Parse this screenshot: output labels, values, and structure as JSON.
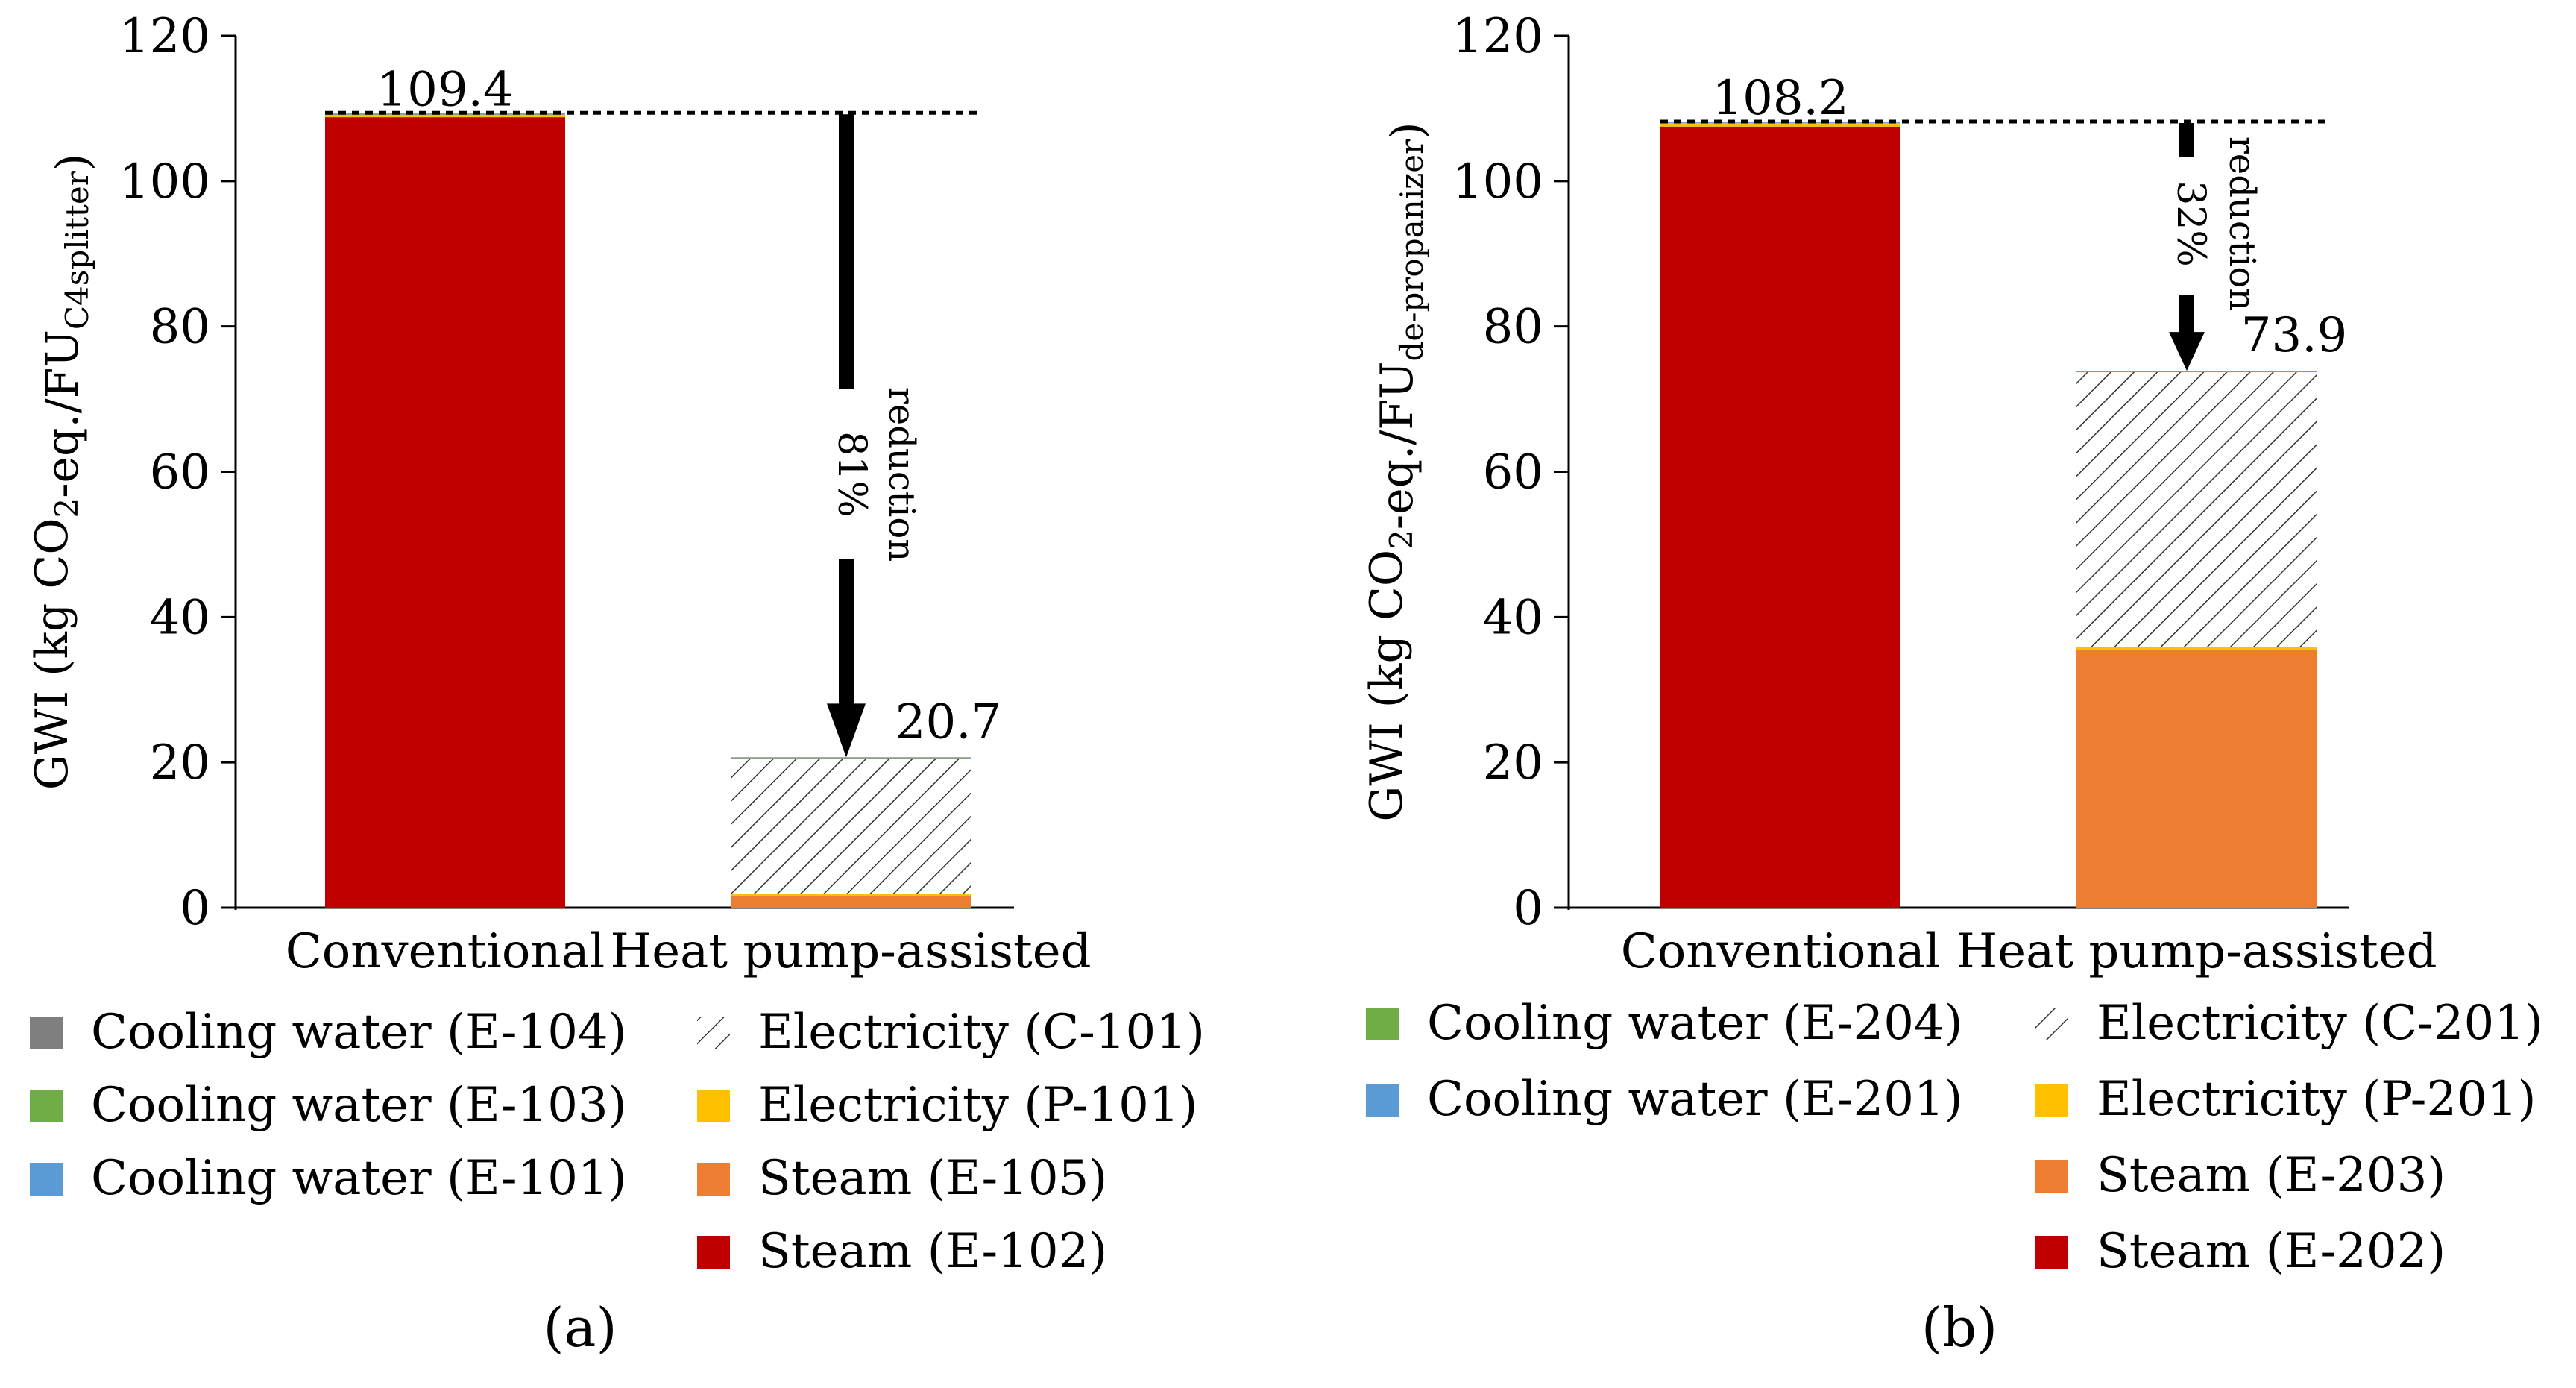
{
  "colors": {
    "steam_main": "#C00000",
    "steam_aux": "#ED7D31",
    "electricity_pump": "#FFC000",
    "cooling_green": "#70AD47",
    "cooling_blue": "#5B9BD5",
    "cooling_gray": "#7F7F7F",
    "axis": "#000000"
  },
  "chart_data": [
    {
      "type": "bar",
      "stacked": true,
      "panel_label": "(a)",
      "ylabel_main": "GWI (kg CO",
      "ylabel_sub1": "2",
      "ylabel_mid": "-eq./FU",
      "ylabel_sub2": "C4splitter",
      "ylabel_end": ")",
      "ylim": [
        0,
        120
      ],
      "yticks": [
        0,
        20,
        40,
        60,
        80,
        100,
        120
      ],
      "categories": [
        "Conventional",
        "Heat pump-assisted"
      ],
      "totals": [
        109.4,
        20.7
      ],
      "total_labels": [
        "109.4",
        "20.7"
      ],
      "baseline": 109.4,
      "reduction_pct": "81%",
      "reduction_word": "reduction",
      "series": [
        {
          "name": "Steam (E-102)",
          "color": "steam_main",
          "hatch": false,
          "values": [
            108.8,
            0
          ]
        },
        {
          "name": "Steam (E-105)",
          "color": "steam_aux",
          "hatch": false,
          "values": [
            0,
            1.6
          ]
        },
        {
          "name": "Electricity (P-101)",
          "color": "electricity_pump",
          "hatch": false,
          "values": [
            0.4,
            0.3
          ]
        },
        {
          "name": "Electricity (C-101)",
          "color": "",
          "hatch": true,
          "values": [
            0,
            18.6
          ]
        },
        {
          "name": "Cooling water (E-101)",
          "color": "cooling_blue",
          "hatch": false,
          "values": [
            0.05,
            0.05
          ]
        },
        {
          "name": "Cooling water (E-103)",
          "color": "cooling_green",
          "hatch": false,
          "values": [
            0.1,
            0.1
          ]
        },
        {
          "name": "Cooling water (E-104)",
          "color": "cooling_gray",
          "hatch": false,
          "values": [
            0.05,
            0.05
          ]
        }
      ],
      "legend_left": [
        "Cooling water (E-104)",
        "Cooling water (E-103)",
        "Cooling water (E-101)"
      ],
      "legend_right": [
        "Electricity (C-101)",
        "Electricity (P-101)",
        "Steam (E-105)",
        "Steam (E-102)"
      ]
    },
    {
      "type": "bar",
      "stacked": true,
      "panel_label": "(b)",
      "ylabel_main": "GWI (kg CO",
      "ylabel_sub1": "2",
      "ylabel_mid": "-eq./FU",
      "ylabel_sub2": "de-propanizer",
      "ylabel_end": ")",
      "ylim": [
        0,
        120
      ],
      "yticks": [
        0,
        20,
        40,
        60,
        80,
        100,
        120
      ],
      "categories": [
        "Conventional",
        "Heat pump-assisted"
      ],
      "totals": [
        108.2,
        73.9
      ],
      "total_labels": [
        "108.2",
        "73.9"
      ],
      "baseline": 108.2,
      "reduction_pct": "32%",
      "reduction_word": "reduction",
      "series": [
        {
          "name": "Steam (E-202)",
          "color": "steam_main",
          "hatch": false,
          "values": [
            107.5,
            0
          ]
        },
        {
          "name": "Steam (E-203)",
          "color": "steam_aux",
          "hatch": false,
          "values": [
            0,
            35.5
          ]
        },
        {
          "name": "Electricity (P-201)",
          "color": "electricity_pump",
          "hatch": false,
          "values": [
            0.5,
            0.4
          ]
        },
        {
          "name": "Electricity (C-201)",
          "color": "",
          "hatch": true,
          "values": [
            0,
            37.8
          ]
        },
        {
          "name": "Cooling water (E-201)",
          "color": "cooling_blue",
          "hatch": false,
          "values": [
            0.1,
            0.1
          ]
        },
        {
          "name": "Cooling water (E-204)",
          "color": "cooling_green",
          "hatch": false,
          "values": [
            0.1,
            0.1
          ]
        }
      ],
      "legend_left": [
        "Cooling water (E-204)",
        "Cooling water (E-201)"
      ],
      "legend_right": [
        "Electricity (C-201)",
        "Electricity (P-201)",
        "Steam (E-203)",
        "Steam (E-202)"
      ]
    }
  ]
}
